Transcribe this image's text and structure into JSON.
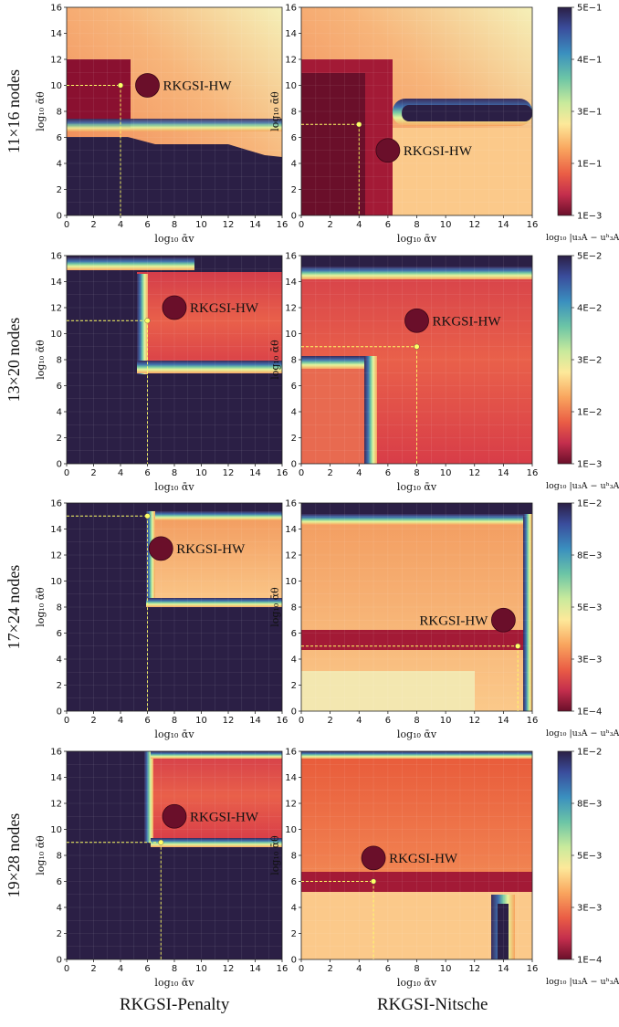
{
  "figure": {
    "column_titles": [
      "RKGSI-Penalty",
      "RKGSI-Nitsche"
    ],
    "row_labels": [
      "11×16 nodes",
      "13×20 nodes",
      "17×24 nodes",
      "19×28 nodes"
    ],
    "marker_label": "RKGSI-HW",
    "colors": {
      "dark": "#2b1f45",
      "highlight": "#ffff66",
      "marker_fill": "#6a0f2a"
    }
  },
  "chart_data": [
    {
      "type": "heatmap",
      "row": 0,
      "col": 0,
      "xlabel": "log₁₀ ᾱv",
      "ylabel": "log₁₀ ᾱθ",
      "xlim": [
        0,
        16
      ],
      "ylim": [
        0,
        16
      ],
      "x_ticks": [
        0,
        2,
        4,
        6,
        8,
        10,
        12,
        14,
        16
      ],
      "y_ticks": [
        0,
        2,
        4,
        6,
        8,
        10,
        12,
        14,
        16
      ],
      "optimum": [
        4,
        10
      ],
      "marker": [
        6,
        10
      ],
      "marker_label": "RKGSI-HW"
    },
    {
      "type": "heatmap",
      "row": 0,
      "col": 1,
      "xlabel": "log₁₀ ᾱv",
      "ylabel": "log₁₀ ᾱθ",
      "xlim": [
        0,
        16
      ],
      "ylim": [
        0,
        16
      ],
      "x_ticks": [
        0,
        2,
        4,
        6,
        8,
        10,
        12,
        14,
        16
      ],
      "y_ticks": [
        0,
        2,
        4,
        6,
        8,
        10,
        12,
        14,
        16
      ],
      "optimum": [
        4,
        7
      ],
      "marker": [
        6,
        5
      ],
      "marker_label": "RKGSI-HW",
      "colorbar": {
        "ticks": [
          "5E−1",
          "4E−1",
          "3E−1",
          "1E−1",
          "1E−3"
        ],
        "label": "log₁₀ |u₃A − uʰ₃A|"
      }
    },
    {
      "type": "heatmap",
      "row": 1,
      "col": 0,
      "xlabel": "log₁₀ ᾱv",
      "ylabel": "log₁₀ ᾱθ",
      "xlim": [
        0,
        16
      ],
      "ylim": [
        0,
        16
      ],
      "x_ticks": [
        0,
        2,
        4,
        6,
        8,
        10,
        12,
        14,
        16
      ],
      "y_ticks": [
        0,
        2,
        4,
        6,
        8,
        10,
        12,
        14,
        16
      ],
      "optimum": [
        6,
        11
      ],
      "marker": [
        8,
        12
      ],
      "marker_label": "RKGSI-HW"
    },
    {
      "type": "heatmap",
      "row": 1,
      "col": 1,
      "xlabel": "log₁₀ ᾱv",
      "ylabel": "log₁₀ ᾱθ",
      "xlim": [
        0,
        16
      ],
      "ylim": [
        0,
        16
      ],
      "x_ticks": [
        0,
        2,
        4,
        6,
        8,
        10,
        12,
        14,
        16
      ],
      "y_ticks": [
        0,
        2,
        4,
        6,
        8,
        10,
        12,
        14,
        16
      ],
      "optimum": [
        8,
        9
      ],
      "marker": [
        8,
        11
      ],
      "marker_label": "RKGSI-HW",
      "colorbar": {
        "ticks": [
          "5E−2",
          "4E−2",
          "3E−2",
          "1E−2",
          "1E−3"
        ],
        "label": "log₁₀ |u₃A − uʰ₃A|"
      }
    },
    {
      "type": "heatmap",
      "row": 2,
      "col": 0,
      "xlabel": "log₁₀ ᾱv",
      "ylabel": "log₁₀ ᾱθ",
      "xlim": [
        0,
        16
      ],
      "ylim": [
        0,
        16
      ],
      "x_ticks": [
        0,
        2,
        4,
        6,
        8,
        10,
        12,
        14,
        16
      ],
      "y_ticks": [
        0,
        2,
        4,
        6,
        8,
        10,
        12,
        14,
        16
      ],
      "optimum": [
        6,
        15
      ],
      "marker": [
        7,
        12.5
      ],
      "marker_label": "RKGSI-HW"
    },
    {
      "type": "heatmap",
      "row": 2,
      "col": 1,
      "xlabel": "log₁₀ ᾱv",
      "ylabel": "log₁₀ ᾱθ",
      "xlim": [
        0,
        16
      ],
      "ylim": [
        0,
        16
      ],
      "x_ticks": [
        0,
        2,
        4,
        6,
        8,
        10,
        12,
        14,
        16
      ],
      "y_ticks": [
        0,
        2,
        4,
        6,
        8,
        10,
        12,
        14,
        16
      ],
      "optimum": [
        15,
        5
      ],
      "marker": [
        14,
        7
      ],
      "marker_label": "RKGSI-HW",
      "colorbar": {
        "ticks": [
          "1E−2",
          "8E−3",
          "5E−3",
          "3E−3",
          "1E−4"
        ],
        "label": "log₁₀ |u₃A − uʰ₃A|"
      }
    },
    {
      "type": "heatmap",
      "row": 3,
      "col": 0,
      "xlabel": "log₁₀ ᾱv",
      "ylabel": "log₁₀ ᾱθ",
      "xlim": [
        0,
        16
      ],
      "ylim": [
        0,
        16
      ],
      "x_ticks": [
        0,
        2,
        4,
        6,
        8,
        10,
        12,
        14,
        16
      ],
      "y_ticks": [
        0,
        2,
        4,
        6,
        8,
        10,
        12,
        14,
        16
      ],
      "optimum": [
        7,
        9
      ],
      "marker": [
        8,
        11
      ],
      "marker_label": "RKGSI-HW"
    },
    {
      "type": "heatmap",
      "row": 3,
      "col": 1,
      "xlabel": "log₁₀ ᾱv",
      "ylabel": "log₁₀ ᾱθ",
      "xlim": [
        0,
        16
      ],
      "ylim": [
        0,
        16
      ],
      "x_ticks": [
        0,
        2,
        4,
        6,
        8,
        10,
        12,
        14,
        16
      ],
      "y_ticks": [
        0,
        2,
        4,
        6,
        8,
        10,
        12,
        14,
        16
      ],
      "optimum": [
        5,
        6
      ],
      "marker": [
        5,
        7.8
      ],
      "marker_label": "RKGSI-HW",
      "colorbar": {
        "ticks": [
          "1E−2",
          "8E−3",
          "5E−3",
          "3E−3",
          "1E−4"
        ],
        "label": "log₁₀ |u₃A − uʰ₃A|"
      }
    }
  ]
}
